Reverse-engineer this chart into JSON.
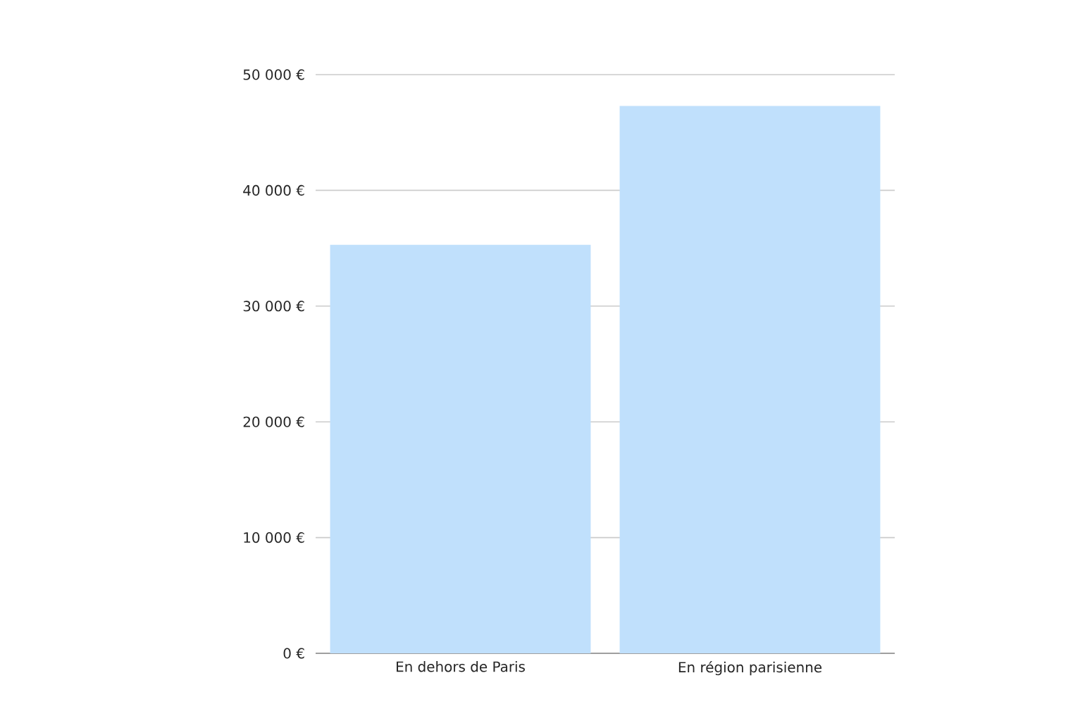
{
  "chart_data": {
    "type": "bar",
    "categories": [
      "En dehors de Paris",
      "En région parisienne"
    ],
    "values": [
      35300,
      47300
    ],
    "color": "#c0e0fc",
    "ylim": [
      0,
      50000
    ],
    "yticks": [
      {
        "value": 0,
        "label": "0 €"
      },
      {
        "value": 10000,
        "label": "10 000 €"
      },
      {
        "value": 20000,
        "label": "20 000 €"
      },
      {
        "value": 30000,
        "label": "30 000 €"
      },
      {
        "value": 40000,
        "label": "40 000 €"
      },
      {
        "value": 50000,
        "label": "50 000 €"
      }
    ],
    "grid": "y"
  }
}
